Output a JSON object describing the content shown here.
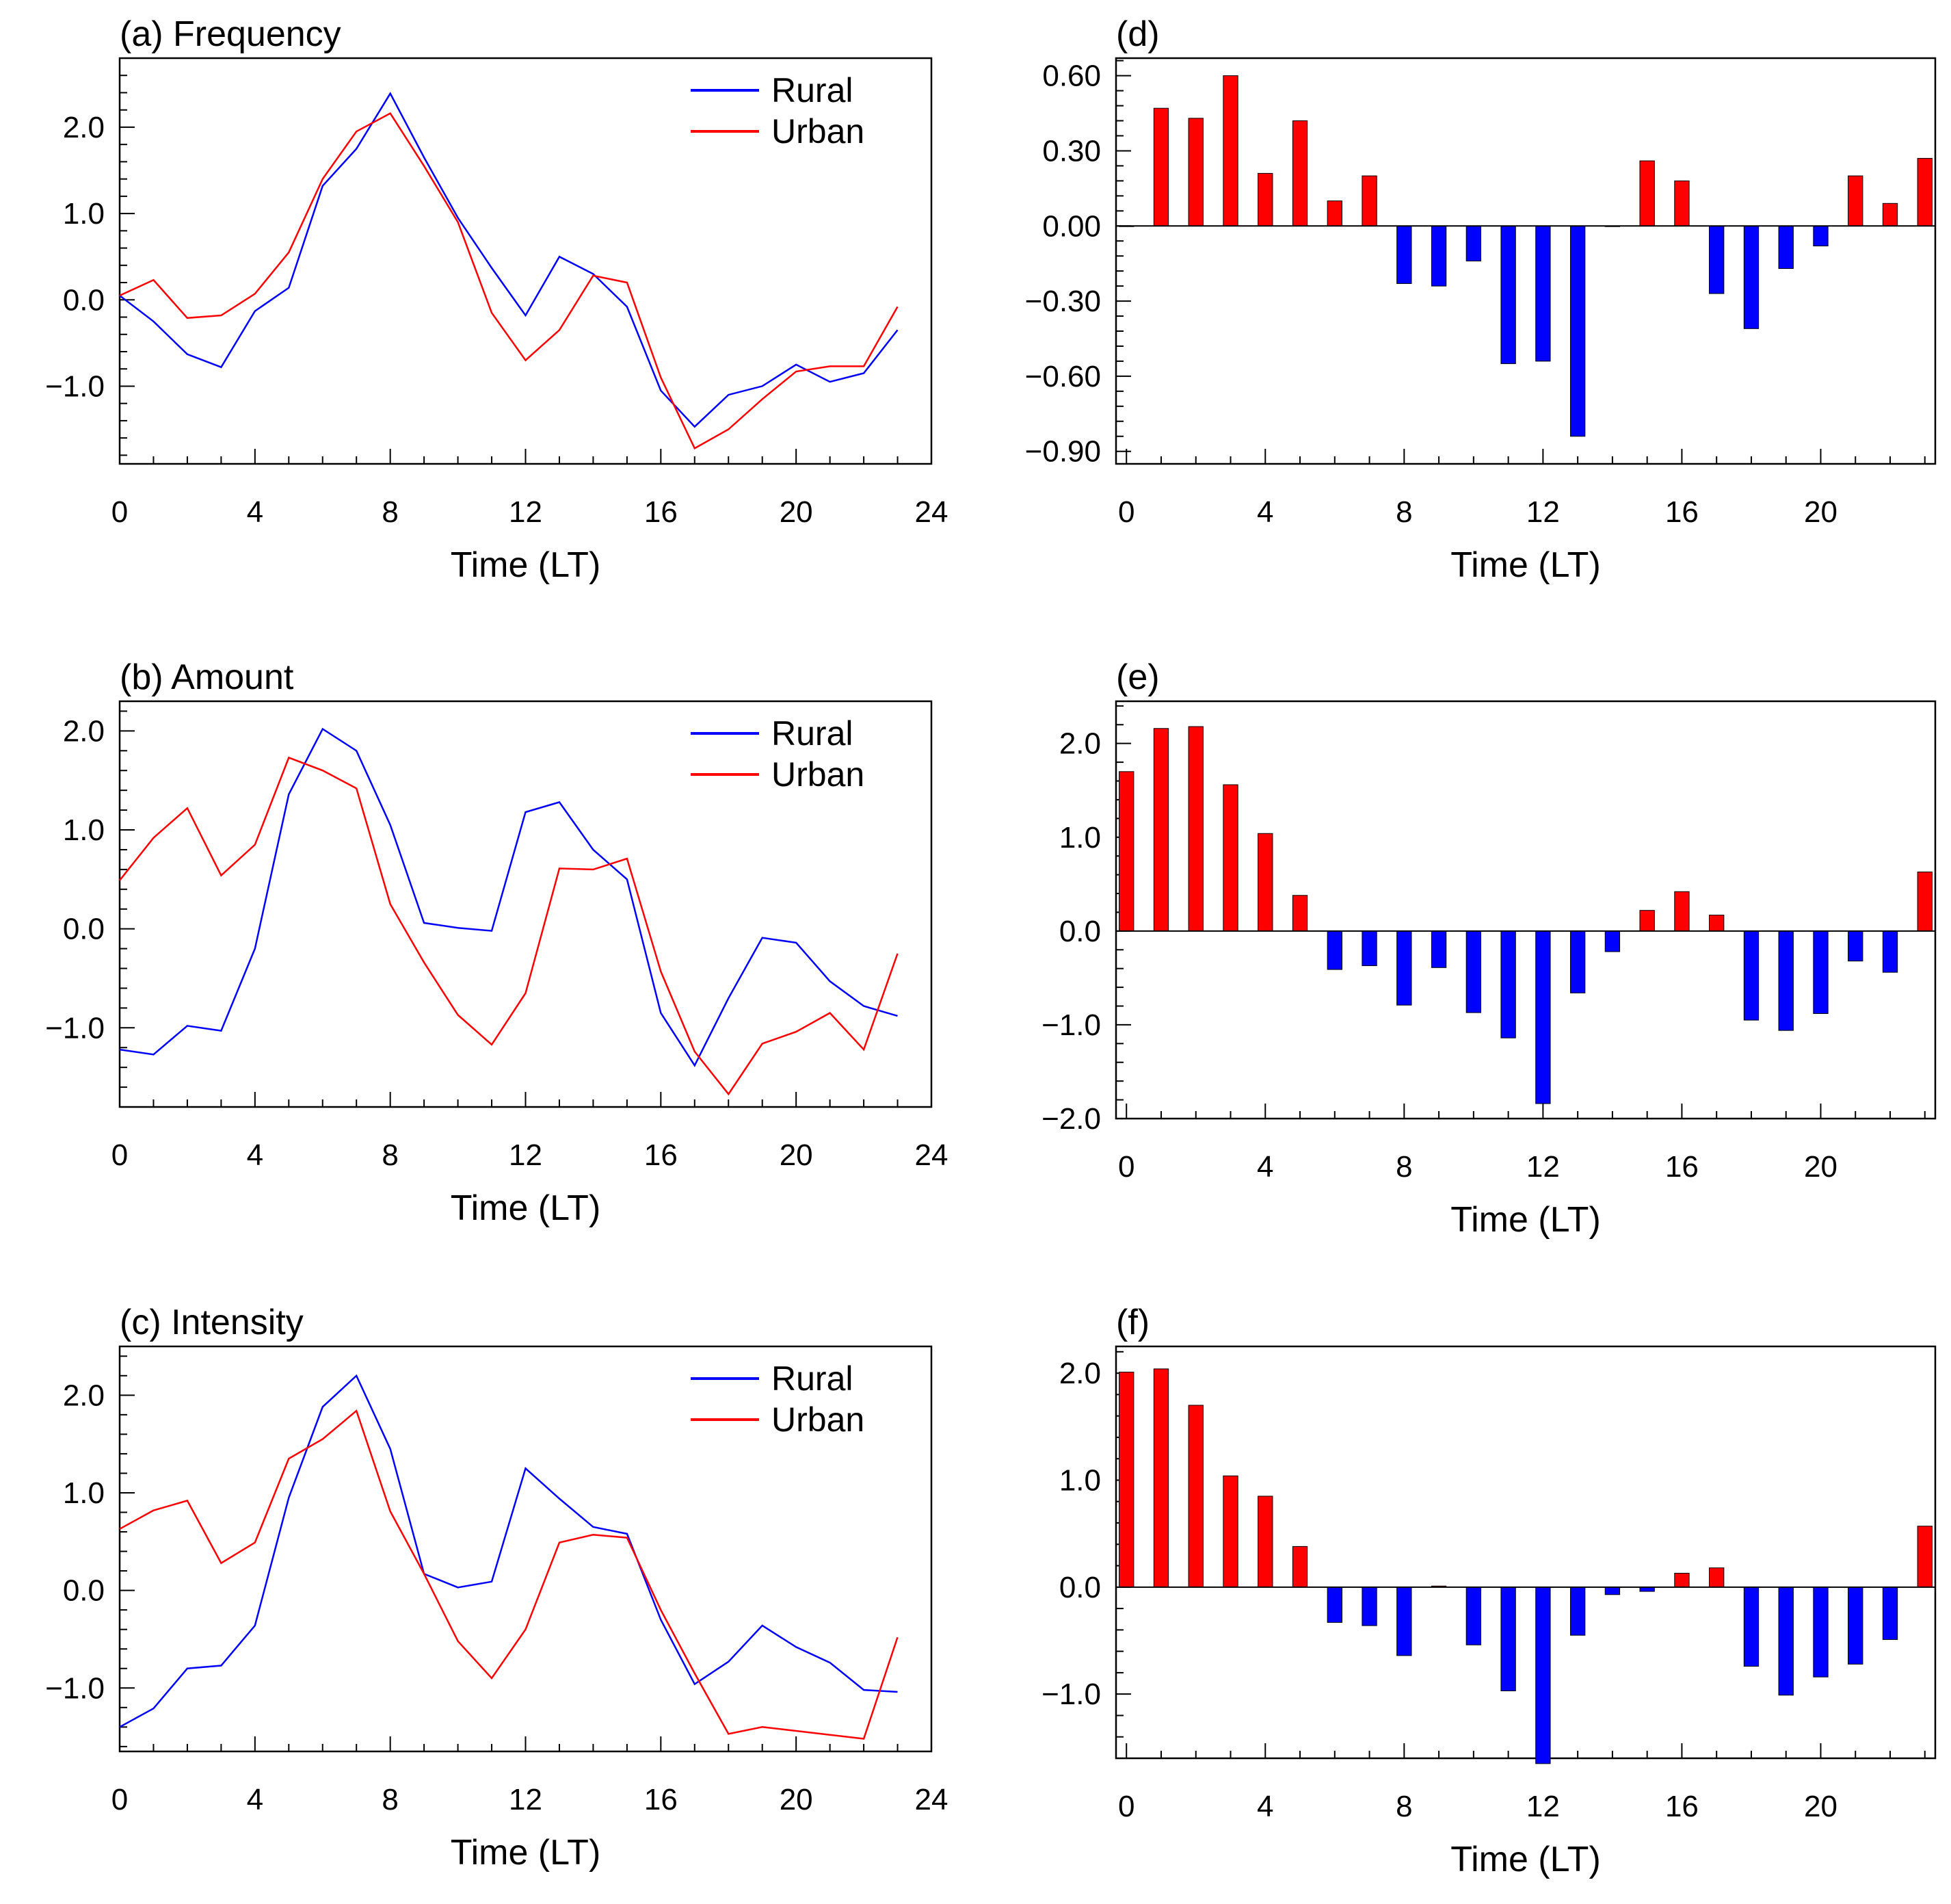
{
  "chart_data": [
    {
      "id": "a",
      "type": "line",
      "title": "(a) Frequency",
      "xlabel": "Time (LT)",
      "ylabel": "",
      "xlim": [
        0,
        24
      ],
      "ylim": [
        -1.9,
        2.8
      ],
      "xticks": [
        0,
        4,
        8,
        12,
        16,
        20,
        24
      ],
      "xtick_labels": [
        "0",
        "4",
        "8",
        "12",
        "16",
        "20",
        "24"
      ],
      "yticks": [
        -1.0,
        0.0,
        1.0,
        2.0
      ],
      "ytick_labels": [
        "−1.0",
        "0.0",
        "1.0",
        "2.0"
      ],
      "x": [
        0,
        1,
        2,
        3,
        4,
        5,
        6,
        7,
        8,
        9,
        10,
        11,
        12,
        13,
        14,
        15,
        16,
        17,
        18,
        19,
        20,
        21,
        22,
        23
      ],
      "series": [
        {
          "name": "Rural",
          "color": "#0000ff",
          "values": [
            0.05,
            -0.25,
            -0.63,
            -0.78,
            -0.13,
            0.14,
            1.32,
            1.75,
            2.39,
            1.65,
            0.95,
            0.37,
            -0.18,
            0.5,
            0.3,
            -0.08,
            -1.05,
            -1.47,
            -1.1,
            -1.0,
            -0.75,
            -0.95,
            -0.85,
            -0.35
          ]
        },
        {
          "name": "Urban",
          "color": "#ff0000",
          "values": [
            0.05,
            0.23,
            -0.21,
            -0.18,
            0.07,
            0.55,
            1.4,
            1.95,
            2.16,
            1.55,
            0.9,
            -0.15,
            -0.7,
            -0.35,
            0.28,
            0.2,
            -0.9,
            -1.72,
            -1.5,
            -1.15,
            -0.83,
            -0.77,
            -0.77,
            -0.08
          ]
        }
      ],
      "legend": "top-right"
    },
    {
      "id": "b",
      "type": "line",
      "title": "(b) Amount",
      "xlabel": "Time (LT)",
      "ylabel": "",
      "xlim": [
        0,
        24
      ],
      "ylim": [
        -1.8,
        2.3
      ],
      "xticks": [
        0,
        4,
        8,
        12,
        16,
        20,
        24
      ],
      "xtick_labels": [
        "0",
        "4",
        "8",
        "12",
        "16",
        "20",
        "24"
      ],
      "yticks": [
        -1.0,
        0.0,
        1.0,
        2.0
      ],
      "ytick_labels": [
        "−1.0",
        "0.0",
        "1.0",
        "2.0"
      ],
      "x": [
        0,
        1,
        2,
        3,
        4,
        5,
        6,
        7,
        8,
        9,
        10,
        11,
        12,
        13,
        14,
        15,
        16,
        17,
        18,
        19,
        20,
        21,
        22,
        23
      ],
      "series": [
        {
          "name": "Rural",
          "color": "#0000ff",
          "values": [
            -1.22,
            -1.27,
            -0.98,
            -1.03,
            -0.2,
            1.36,
            2.02,
            1.8,
            1.05,
            0.06,
            0.01,
            -0.02,
            1.18,
            1.28,
            0.8,
            0.5,
            -0.85,
            -1.38,
            -0.7,
            -0.09,
            -0.14,
            -0.53,
            -0.78,
            -0.88
          ]
        },
        {
          "name": "Urban",
          "color": "#ff0000",
          "values": [
            0.49,
            0.92,
            1.22,
            0.54,
            0.85,
            1.73,
            1.6,
            1.42,
            0.25,
            -0.34,
            -0.87,
            -1.17,
            -0.65,
            0.61,
            0.6,
            0.71,
            -0.43,
            -1.24,
            -1.67,
            -1.16,
            -1.04,
            -0.85,
            -1.22,
            -0.25
          ]
        }
      ],
      "legend": "top-right"
    },
    {
      "id": "c",
      "type": "line",
      "title": "(c) Intensity",
      "xlabel": "Time (LT)",
      "ylabel": "",
      "xlim": [
        0,
        24
      ],
      "ylim": [
        -1.65,
        2.5
      ],
      "xticks": [
        0,
        4,
        8,
        12,
        16,
        20,
        24
      ],
      "xtick_labels": [
        "0",
        "4",
        "8",
        "12",
        "16",
        "20",
        "24"
      ],
      "yticks": [
        -1.0,
        0.0,
        1.0,
        2.0
      ],
      "ytick_labels": [
        "−1.0",
        "0.0",
        "1.0",
        "2.0"
      ],
      "x": [
        0,
        1,
        2,
        3,
        4,
        5,
        6,
        7,
        8,
        9,
        10,
        11,
        12,
        13,
        14,
        15,
        16,
        17,
        18,
        19,
        20,
        21,
        22,
        23
      ],
      "series": [
        {
          "name": "Rural",
          "color": "#0000ff",
          "values": [
            -1.4,
            -1.21,
            -0.8,
            -0.77,
            -0.36,
            0.95,
            1.88,
            2.2,
            1.45,
            0.17,
            0.03,
            0.09,
            1.25,
            0.94,
            0.65,
            0.58,
            -0.3,
            -0.96,
            -0.73,
            -0.36,
            -0.58,
            -0.74,
            -1.02,
            -1.04
          ]
        },
        {
          "name": "Urban",
          "color": "#ff0000",
          "values": [
            0.63,
            0.82,
            0.92,
            0.28,
            0.49,
            1.35,
            1.55,
            1.84,
            0.81,
            0.17,
            -0.52,
            -0.9,
            -0.4,
            0.49,
            0.57,
            0.54,
            -0.2,
            -0.85,
            -1.47,
            -1.4,
            -1.44,
            -1.48,
            -1.52,
            -0.48
          ]
        }
      ],
      "legend": "top-right"
    },
    {
      "id": "d",
      "type": "bar",
      "title": "(d)",
      "xlabel": "Time (LT)",
      "ylabel": "",
      "xlim": [
        -0.3,
        23.3
      ],
      "ylim": [
        -0.95,
        0.67
      ],
      "xticks": [
        0,
        4,
        8,
        12,
        16,
        20
      ],
      "xtick_labels": [
        "0",
        "4",
        "8",
        "12",
        "16",
        "20"
      ],
      "yticks": [
        -0.9,
        -0.6,
        -0.3,
        0.0,
        0.3,
        0.6
      ],
      "ytick_labels": [
        "−0.90",
        "−0.60",
        "−0.30",
        "0.00",
        "0.30",
        "0.60"
      ],
      "x": [
        0,
        1,
        2,
        3,
        4,
        5,
        6,
        7,
        8,
        9,
        10,
        11,
        12,
        13,
        14,
        15,
        16,
        17,
        18,
        19,
        20,
        21,
        22,
        23
      ],
      "values": [
        0.0,
        0.47,
        0.43,
        0.6,
        0.21,
        0.42,
        0.1,
        0.2,
        -0.23,
        -0.24,
        -0.14,
        -0.55,
        -0.54,
        -0.84,
        0.0,
        0.26,
        0.18,
        -0.27,
        -0.41,
        -0.17,
        -0.08,
        0.2,
        0.09,
        0.27
      ],
      "positive_color": "#ff0000",
      "negative_color": "#0000ff"
    },
    {
      "id": "e",
      "type": "bar",
      "title": "(e)",
      "xlabel": "Time (LT)",
      "ylabel": "",
      "xlim": [
        -0.3,
        23.3
      ],
      "ylim": [
        -2.0,
        2.45
      ],
      "xticks": [
        0,
        4,
        8,
        12,
        16,
        20
      ],
      "xtick_labels": [
        "0",
        "4",
        "8",
        "12",
        "16",
        "20"
      ],
      "yticks": [
        -2.0,
        -1.0,
        0.0,
        1.0,
        2.0
      ],
      "ytick_labels": [
        "−2.0",
        "−1.0",
        "0.0",
        "1.0",
        "2.0"
      ],
      "x": [
        0,
        1,
        2,
        3,
        4,
        5,
        6,
        7,
        8,
        9,
        10,
        11,
        12,
        13,
        14,
        15,
        16,
        17,
        18,
        19,
        20,
        21,
        22,
        23
      ],
      "values": [
        1.7,
        2.16,
        2.18,
        1.56,
        1.04,
        0.38,
        -0.41,
        -0.37,
        -0.79,
        -0.39,
        -0.87,
        -1.14,
        -1.84,
        -0.66,
        -0.22,
        0.22,
        0.42,
        0.17,
        -0.95,
        -1.06,
        -0.88,
        -0.32,
        -0.44,
        0.63
      ],
      "positive_color": "#ff0000",
      "negative_color": "#0000ff"
    },
    {
      "id": "f",
      "type": "bar",
      "title": "(f)",
      "xlabel": "Time (LT)",
      "ylabel": "",
      "xlim": [
        -0.3,
        23.3
      ],
      "ylim": [
        -1.6,
        2.25
      ],
      "xticks": [
        0,
        4,
        8,
        12,
        16,
        20
      ],
      "xtick_labels": [
        "0",
        "4",
        "8",
        "12",
        "16",
        "20"
      ],
      "yticks": [
        -1.0,
        0.0,
        1.0,
        2.0
      ],
      "ytick_labels": [
        "−1.0",
        "0.0",
        "1.0",
        "2.0"
      ],
      "x": [
        0,
        1,
        2,
        3,
        4,
        5,
        6,
        7,
        8,
        9,
        10,
        11,
        12,
        13,
        14,
        15,
        16,
        17,
        18,
        19,
        20,
        21,
        22,
        23
      ],
      "values": [
        2.01,
        2.04,
        1.7,
        1.04,
        0.85,
        0.38,
        -0.33,
        -0.36,
        -0.64,
        0.01,
        -0.54,
        -0.97,
        -1.65,
        -0.45,
        -0.07,
        -0.04,
        0.13,
        0.18,
        -0.74,
        -1.01,
        -0.84,
        -0.72,
        -0.49,
        0.57
      ],
      "positive_color": "#ff0000",
      "negative_color": "#0000ff"
    }
  ]
}
